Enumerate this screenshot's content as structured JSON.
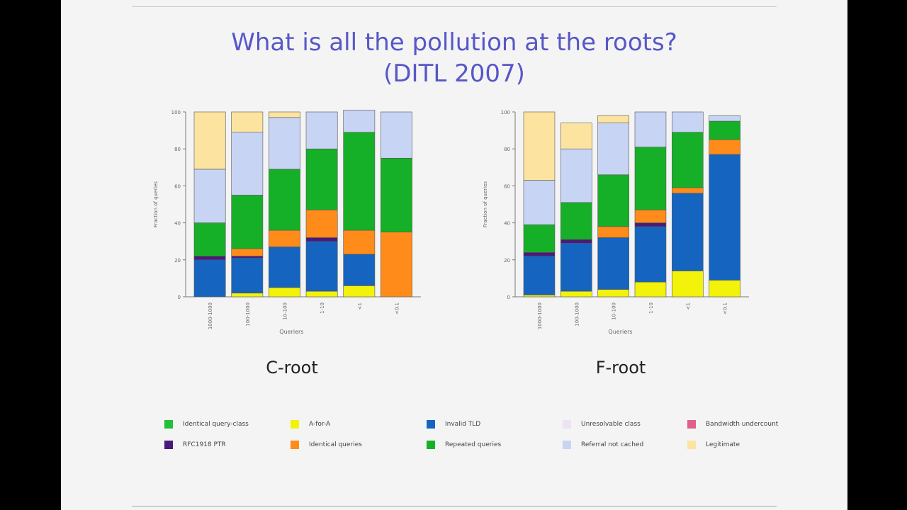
{
  "slide": {
    "title_line1": "What is all the pollution at the roots?",
    "title_line2": "(DITL 2007)"
  },
  "colors": {
    "identical_query": "#22c03a",
    "a_for_a": "#f2f20a",
    "invalid_tld": "#1565c0",
    "unresolvable": "#ece4f4",
    "bandwidth": "#e0608c",
    "rfc1918_ptr": "#4a1a7a",
    "identical_id": "#ff8c1a",
    "repeated_queries": "#16b028",
    "referral_not_cached": "#c8d4f4",
    "legitimate": "#fce4a0"
  },
  "legend": [
    {
      "label": "Identical query-class",
      "color": "#22c03a"
    },
    {
      "label": "A-for-A",
      "color": "#f2f20a"
    },
    {
      "label": "Invalid TLD",
      "color": "#1565c0"
    },
    {
      "label": "Unresolvable class",
      "color": "#ece4f4"
    },
    {
      "label": "Bandwidth undercount",
      "color": "#e0608c"
    },
    {
      "label": "RFC1918 PTR",
      "color": "#4a1a7a"
    },
    {
      "label": "Identical queries",
      "color": "#ff8c1a"
    },
    {
      "label": "Repeated queries",
      "color": "#16b028"
    },
    {
      "label": "Referral not cached",
      "color": "#c8d4f4"
    },
    {
      "label": "Legitimate",
      "color": "#fce4a0"
    }
  ],
  "chart_data": [
    {
      "type": "bar",
      "stacked": true,
      "caption": "C-root",
      "xlabel": "Queriers",
      "ylabel": "Fraction of queries",
      "ylim": [
        0,
        1
      ],
      "yticks": [
        "0",
        "20",
        "40",
        "60",
        "80",
        "100"
      ],
      "categories": [
        "1000-1000",
        "100-1000",
        "10-100",
        "1-10",
        "<1",
        "<0.1"
      ],
      "series": [
        {
          "name": "A-for-A",
          "color": "#f2f20a",
          "values": [
            0.0,
            0.02,
            0.05,
            0.03,
            0.06,
            0.0
          ]
        },
        {
          "name": "Invalid TLD",
          "color": "#1565c0",
          "values": [
            0.2,
            0.19,
            0.22,
            0.27,
            0.17,
            0.0
          ]
        },
        {
          "name": "RFC1918 PTR",
          "color": "#4a1a7a",
          "values": [
            0.02,
            0.01,
            0.0,
            0.02,
            0.0,
            0.0
          ]
        },
        {
          "name": "Identical queries",
          "color": "#ff8c1a",
          "values": [
            0.0,
            0.04,
            0.09,
            0.15,
            0.13,
            0.35
          ]
        },
        {
          "name": "Repeated queries",
          "color": "#16b028",
          "values": [
            0.18,
            0.29,
            0.33,
            0.33,
            0.53,
            0.4
          ]
        },
        {
          "name": "Referral not cached",
          "color": "#c8d4f4",
          "values": [
            0.29,
            0.34,
            0.28,
            0.2,
            0.12,
            0.25
          ]
        },
        {
          "name": "Legitimate",
          "color": "#fce4a0",
          "values": [
            0.31,
            0.11,
            0.03,
            0.0,
            0.0,
            0.0
          ]
        }
      ]
    },
    {
      "type": "bar",
      "stacked": true,
      "caption": "F-root",
      "xlabel": "Queriers",
      "ylabel": "Fraction of queries",
      "ylim": [
        0,
        1
      ],
      "yticks": [
        "0",
        "20",
        "40",
        "60",
        "80",
        "100"
      ],
      "categories": [
        "1000-1000",
        "100-1000",
        "10-100",
        "1-10",
        "<1",
        "<0.1"
      ],
      "series": [
        {
          "name": "A-for-A",
          "color": "#f2f20a",
          "values": [
            0.01,
            0.03,
            0.04,
            0.08,
            0.14,
            0.09
          ]
        },
        {
          "name": "Invalid TLD",
          "color": "#1565c0",
          "values": [
            0.21,
            0.26,
            0.28,
            0.3,
            0.42,
            0.68
          ]
        },
        {
          "name": "RFC1918 PTR",
          "color": "#4a1a7a",
          "values": [
            0.02,
            0.02,
            0.0,
            0.02,
            0.0,
            0.0
          ]
        },
        {
          "name": "Identical queries",
          "color": "#ff8c1a",
          "values": [
            0.0,
            0.0,
            0.06,
            0.07,
            0.03,
            0.08
          ]
        },
        {
          "name": "Repeated queries",
          "color": "#16b028",
          "values": [
            0.15,
            0.2,
            0.28,
            0.34,
            0.3,
            0.1
          ]
        },
        {
          "name": "Referral not cached",
          "color": "#c8d4f4",
          "values": [
            0.24,
            0.29,
            0.28,
            0.19,
            0.11,
            0.03
          ]
        },
        {
          "name": "Legitimate",
          "color": "#fce4a0",
          "values": [
            0.37,
            0.14,
            0.04,
            0.0,
            0.0,
            0.0
          ]
        }
      ]
    }
  ]
}
